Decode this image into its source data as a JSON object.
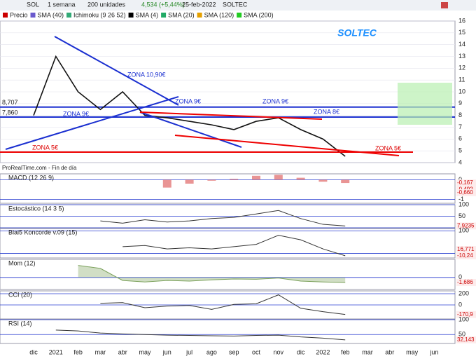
{
  "toolbar": {
    "symbol": "SOL",
    "period": "1 semana",
    "units": "200 unidades",
    "quote": "4,534 (+5,44%)",
    "date": "25-feb-2022",
    "name": "SOLTEC"
  },
  "legend": [
    "Precio",
    "SMA (40)",
    "Ichimoku (9 26 52)",
    "SMA (4)",
    "SMA (20)",
    "SMA (120)",
    "SMA (200)"
  ],
  "footer": "ProRealTime.com - Fin de día",
  "chart_data": [
    {
      "type": "line",
      "title": "SOLTEC",
      "categories": [
        "dic",
        "2021",
        "feb",
        "mar",
        "abr",
        "may",
        "jun",
        "jul",
        "ago",
        "sep",
        "oct",
        "nov",
        "dic",
        "2022",
        "feb",
        "mar",
        "abr",
        "may",
        "jun"
      ],
      "series": [
        {
          "name": "Precio",
          "color": "#111111",
          "values": [
            8,
            13,
            10,
            8.5,
            10,
            8,
            7.8,
            7.5,
            7.2,
            6.8,
            7.5,
            7.8,
            6.8,
            6,
            4.534,
            null,
            null,
            null,
            null
          ]
        }
      ],
      "ylim": [
        4,
        16
      ],
      "yticks": [
        4,
        5,
        6,
        7,
        8,
        9,
        10,
        11,
        12,
        13,
        14,
        15,
        16
      ],
      "levels": [
        {
          "value": 8.707,
          "label": "8,707"
        },
        {
          "value": 7.86,
          "label": "7,860"
        }
      ],
      "annotations": [
        "ZONA 10,90€",
        "ZONA 9€",
        "ZONA 9€",
        "ZONA 9€",
        "ZONA 8€",
        "ZONA 5€",
        "ZONA 5€"
      ]
    },
    {
      "type": "bar",
      "title": "MACD (12 26 9)",
      "series": [
        {
          "name": "MACD",
          "color": "#e06666",
          "values": [
            null,
            null,
            null,
            null,
            null,
            null,
            -0.4,
            -0.2,
            -0.05,
            0.05,
            0.2,
            0.25,
            0.1,
            -0.1,
            -0.167,
            null,
            null,
            null,
            null
          ]
        }
      ],
      "ylim": [
        -1.2,
        0.3
      ],
      "yticks": [
        0,
        -1
      ],
      "tags": [
        {
          "value": -0.167,
          "label": "-0,167"
        },
        {
          "value": -0.492,
          "label": "-0,492"
        },
        {
          "value": -0.66,
          "label": "-0,660"
        }
      ]
    },
    {
      "type": "line",
      "title": "Estocástico (14 3 5)",
      "series": [
        {
          "name": "Estocástico",
          "color": "#333333",
          "values": [
            null,
            null,
            null,
            30,
            20,
            35,
            25,
            30,
            40,
            45,
            60,
            75,
            40,
            15,
            7.9235,
            null,
            null,
            null,
            null
          ]
        }
      ],
      "ylim": [
        0,
        100
      ],
      "yticks": [
        100,
        50,
        0
      ],
      "tags": [
        {
          "value": 7.9235,
          "label": "7,9235"
        }
      ]
    },
    {
      "type": "line",
      "title": "Blai5 Koncorde v.09 (15)",
      "series": [
        {
          "name": "Koncorde",
          "color": "#333333",
          "values": [
            null,
            null,
            null,
            null,
            30,
            35,
            20,
            25,
            20,
            30,
            40,
            80,
            60,
            20,
            -10.24,
            null,
            null,
            null,
            null
          ]
        }
      ],
      "ylim": [
        -20,
        110
      ],
      "yticks": [
        100,
        0
      ],
      "tags": [
        {
          "value": 16.771,
          "label": "16,771"
        },
        {
          "value": -10.24,
          "label": "-10,24"
        }
      ]
    },
    {
      "type": "area",
      "title": "Mom (12)",
      "series": [
        {
          "name": "Mom",
          "color": "#7aa05a",
          "values": [
            null,
            null,
            4,
            3,
            -1,
            -1.5,
            -1,
            -1.2,
            -0.8,
            -0.5,
            -0.6,
            -0.2,
            -1.2,
            -1.5,
            -1.686,
            null,
            null,
            null,
            null
          ]
        }
      ],
      "ylim": [
        -4,
        6
      ],
      "yticks": [
        0
      ],
      "tags": [
        {
          "value": -1.686,
          "label": "-1,686"
        }
      ]
    },
    {
      "type": "line",
      "title": "CCI (20)",
      "series": [
        {
          "name": "CCI",
          "color": "#333333",
          "values": [
            null,
            null,
            null,
            30,
            40,
            -50,
            -20,
            -10,
            -80,
            10,
            20,
            180,
            -60,
            -120,
            -170.9,
            null,
            null,
            null,
            null
          ]
        }
      ],
      "ylim": [
        -250,
        250
      ],
      "yticks": [
        200,
        0
      ],
      "tags": [
        {
          "value": -170.9,
          "label": "-170,9"
        }
      ]
    },
    {
      "type": "line",
      "title": "RSI (14)",
      "series": [
        {
          "name": "RSI",
          "color": "#333333",
          "values": [
            null,
            65,
            62,
            55,
            52,
            50,
            48,
            47,
            46,
            45,
            47,
            48,
            42,
            38,
            32.143,
            null,
            null,
            null,
            null
          ]
        }
      ],
      "ylim": [
        20,
        100
      ],
      "yticks": [
        100,
        50
      ],
      "tags": [
        {
          "value": 32.143,
          "label": "32,143"
        }
      ]
    }
  ]
}
